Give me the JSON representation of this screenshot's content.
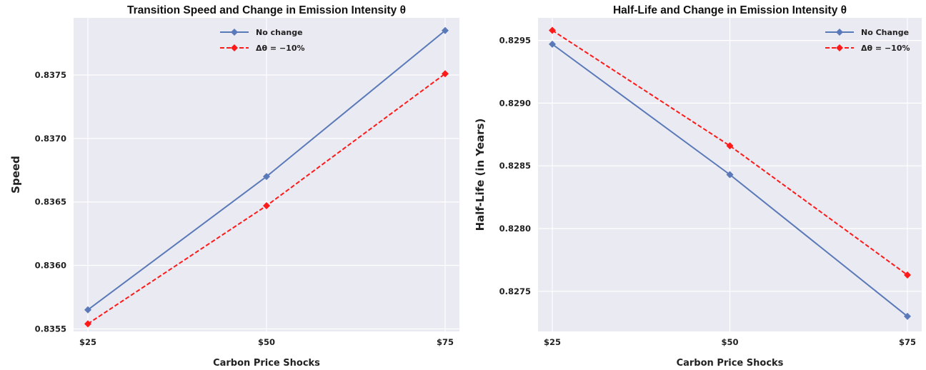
{
  "chart_data": [
    {
      "type": "line",
      "title": "Transition Speed and Change in Emission Intensity θ",
      "xlabel": "Carbon Price Shocks",
      "ylabel": "Speed",
      "categories": [
        "$25",
        "$50",
        "$75"
      ],
      "yticks": [
        "0.8355",
        "0.8360",
        "0.8365",
        "0.8370",
        "0.8375"
      ],
      "ylim": [
        0.83548,
        0.83795
      ],
      "grid": true,
      "legend_position": "top-center",
      "series": [
        {
          "name": "No change",
          "values": [
            0.83565,
            0.8367,
            0.83785
          ],
          "color": "#5a79b8",
          "style": "solid",
          "marker": "diamond"
        },
        {
          "name": "Δθ = −10%",
          "values": [
            0.83554,
            0.83647,
            0.83751
          ],
          "color": "#ff1a1a",
          "style": "dashed",
          "marker": "diamond"
        }
      ]
    },
    {
      "type": "line",
      "title": "Half-Life and Change in Emission Intensity θ",
      "xlabel": "Carbon Price Shocks",
      "ylabel": "Half-Life (in Years)",
      "categories": [
        "$25",
        "$50",
        "$75"
      ],
      "yticks": [
        "0.8275",
        "0.8280",
        "0.8285",
        "0.8290",
        "0.8295"
      ],
      "ylim": [
        0.82718,
        0.82968
      ],
      "grid": true,
      "legend_position": "top-right",
      "series": [
        {
          "name": "No Change",
          "values": [
            0.82947,
            0.82843,
            0.8273
          ],
          "color": "#5a79b8",
          "style": "solid",
          "marker": "diamond"
        },
        {
          "name": "Δθ = −10%",
          "values": [
            0.82958,
            0.82866,
            0.82763
          ],
          "color": "#ff1a1a",
          "style": "dashed",
          "marker": "diamond"
        }
      ]
    }
  ]
}
